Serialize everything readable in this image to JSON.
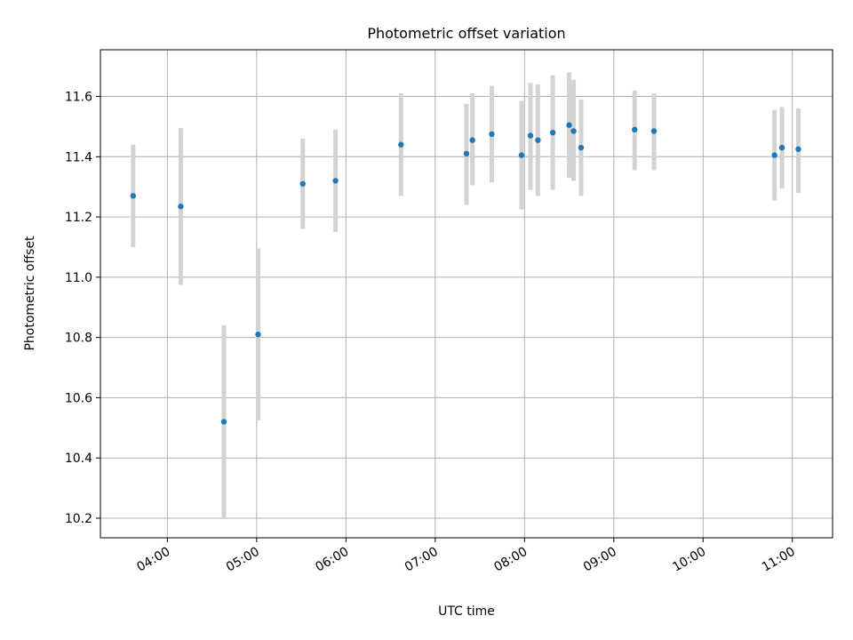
{
  "chart_data": {
    "type": "scatter",
    "title": "Photometric offset variation",
    "xlabel": "UTC time",
    "ylabel": "Photometric offset",
    "xlim": [
      "03:15",
      "11:27"
    ],
    "ylim": [
      10.135,
      11.755
    ],
    "x_ticks": [
      "04:00",
      "05:00",
      "06:00",
      "07:00",
      "08:00",
      "09:00",
      "10:00",
      "11:00"
    ],
    "y_ticks": [
      "10.2",
      "10.4",
      "10.6",
      "10.8",
      "11.0",
      "11.2",
      "11.4",
      "11.6"
    ],
    "grid": true,
    "colors": {
      "point": "#1f77b4",
      "error_bar": "#d3d3d3",
      "grid": "#b0b0b0"
    },
    "series": [
      {
        "points": [
          {
            "t": "03:37",
            "y": 11.27,
            "ymin": 11.1,
            "ymax": 11.44
          },
          {
            "t": "04:09",
            "y": 11.235,
            "ymin": 10.975,
            "ymax": 11.495
          },
          {
            "t": "04:38",
            "y": 10.52,
            "ymin": 10.2,
            "ymax": 10.84
          },
          {
            "t": "05:01",
            "y": 10.81,
            "ymin": 10.525,
            "ymax": 11.095
          },
          {
            "t": "05:31",
            "y": 11.31,
            "ymin": 11.16,
            "ymax": 11.46
          },
          {
            "t": "05:53",
            "y": 11.32,
            "ymin": 11.15,
            "ymax": 11.49
          },
          {
            "t": "06:37",
            "y": 11.44,
            "ymin": 11.27,
            "ymax": 11.61
          },
          {
            "t": "07:21",
            "y": 11.41,
            "ymin": 11.24,
            "ymax": 11.575
          },
          {
            "t": "07:25",
            "y": 11.455,
            "ymin": 11.305,
            "ymax": 11.61
          },
          {
            "t": "07:38",
            "y": 11.475,
            "ymin": 11.315,
            "ymax": 11.635
          },
          {
            "t": "07:58",
            "y": 11.405,
            "ymin": 11.225,
            "ymax": 11.585
          },
          {
            "t": "08:04",
            "y": 11.47,
            "ymin": 11.29,
            "ymax": 11.645
          },
          {
            "t": "08:09",
            "y": 11.455,
            "ymin": 11.27,
            "ymax": 11.64
          },
          {
            "t": "08:19",
            "y": 11.48,
            "ymin": 11.29,
            "ymax": 11.67
          },
          {
            "t": "08:30",
            "y": 11.505,
            "ymin": 11.33,
            "ymax": 11.68
          },
          {
            "t": "08:33",
            "y": 11.485,
            "ymin": 11.32,
            "ymax": 11.655
          },
          {
            "t": "08:38",
            "y": 11.43,
            "ymin": 11.27,
            "ymax": 11.59
          },
          {
            "t": "09:14",
            "y": 11.49,
            "ymin": 11.355,
            "ymax": 11.62
          },
          {
            "t": "09:27",
            "y": 11.485,
            "ymin": 11.355,
            "ymax": 11.61
          },
          {
            "t": "10:48",
            "y": 11.405,
            "ymin": 11.255,
            "ymax": 11.555
          },
          {
            "t": "10:53",
            "y": 11.43,
            "ymin": 11.295,
            "ymax": 11.565
          },
          {
            "t": "11:04",
            "y": 11.425,
            "ymin": 11.28,
            "ymax": 11.56
          }
        ]
      }
    ]
  }
}
